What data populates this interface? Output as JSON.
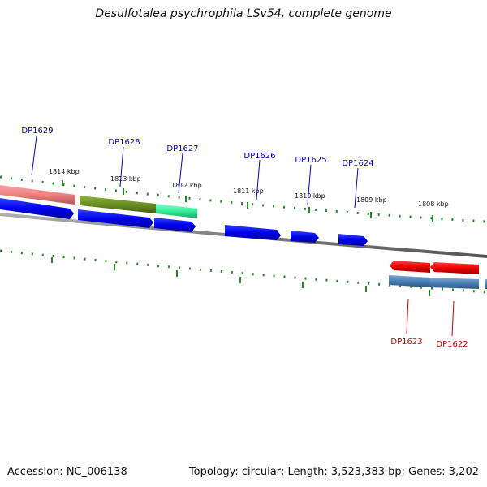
{
  "title": "Desulfotalea psychrophila LSv54, complete genome",
  "footer": {
    "accession": "Accession: NC_006138",
    "summary": "Topology: circular; Length: 3,523,383 bp; Genes: 3,202"
  },
  "ruler_labels": [
    "1814 kbp",
    "1813 kbp",
    "1812 kbp",
    "1811 kbp",
    "1810 kbp",
    "1809 kbp",
    "1808 kbp"
  ],
  "forward_genes": [
    {
      "label": "DP1629",
      "color": "#0000cc"
    },
    {
      "label": "DP1628",
      "color": "#0000cc"
    },
    {
      "label": "DP1627",
      "color": "#0000cc"
    },
    {
      "label": "DP1626",
      "color": "#0000cc"
    },
    {
      "label": "DP1625",
      "color": "#0000cc"
    },
    {
      "label": "DP1624",
      "color": "#0000cc"
    }
  ],
  "reverse_genes": [
    {
      "label": "DP1623",
      "color": "#cc0000"
    },
    {
      "label": "DP1622",
      "color": "#cc0000"
    }
  ],
  "colors": {
    "forward_cds": "#0000ee",
    "reverse_cds": "#ee0000",
    "rrna_like": "#f08080",
    "olive_feature": "#6b8e23",
    "mint_feature": "#33ee99",
    "steel_feature": "#4a7fb5",
    "backbone": "#808080",
    "ticks": "#228b22"
  }
}
